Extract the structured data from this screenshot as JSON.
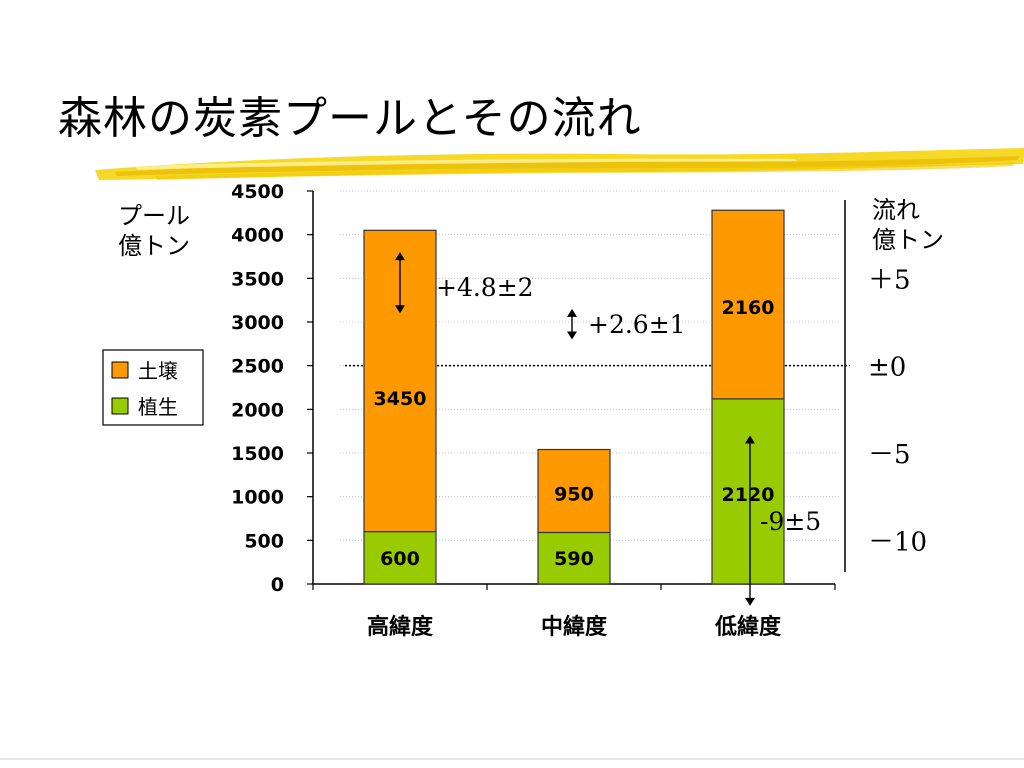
{
  "slide": {
    "title": "森林の炭素プールとその流れ"
  },
  "colors": {
    "soil": "#ff9900",
    "vegetation": "#99cc00",
    "brush_yellow": "#f5d200",
    "bar_stroke": "#333333"
  },
  "chart_data": {
    "type": "bar",
    "stacked": true,
    "categories": [
      "高緯度",
      "中緯度",
      "低緯度"
    ],
    "series": [
      {
        "name": "植生",
        "values": [
          600,
          590,
          2120
        ],
        "color": "#99cc00"
      },
      {
        "name": "土壌",
        "values": [
          3450,
          950,
          2160
        ],
        "color": "#ff9900"
      }
    ],
    "ylabel": "プール\n億トン",
    "ylim": [
      0,
      4500
    ],
    "yticks": [
      0,
      500,
      1000,
      1500,
      2000,
      2500,
      3000,
      3500,
      4000,
      4500
    ],
    "legend": {
      "placement": "left",
      "items": [
        "土壌",
        "植生"
      ]
    },
    "right_axis": {
      "label": "流れ\n億トン",
      "ticks": [
        {
          "label": "＋5",
          "at": 3500
        },
        {
          "label": "±0",
          "at": 2500
        },
        {
          "label": "－5",
          "at": 1500
        },
        {
          "label": "－10",
          "at": 500
        }
      ]
    },
    "reference_line": {
      "at": 2500,
      "style": "dotted"
    },
    "annotations": [
      {
        "text": "+4.8±2",
        "category": "高緯度",
        "from": 3800,
        "to": 3100
      },
      {
        "text": "+2.6±1",
        "category": "中緯度",
        "from": 3150,
        "to": 2800
      },
      {
        "text": "-9±5",
        "category": "低緯度",
        "from": 1700,
        "to": -250
      }
    ]
  }
}
